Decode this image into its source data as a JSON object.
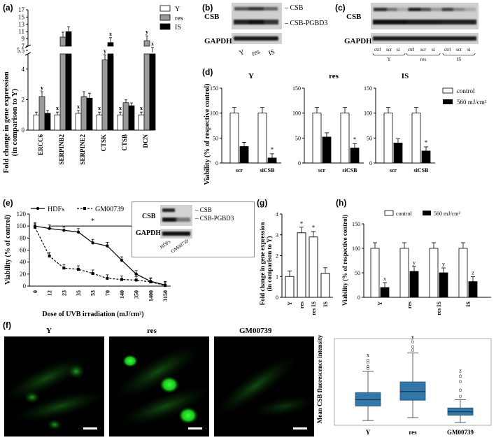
{
  "figure": {
    "panel_labels": [
      "(a)",
      "(b)",
      "(c)",
      "(d)",
      "(e)",
      "(f)",
      "(g)",
      "(h)"
    ]
  },
  "panel_a": {
    "ylabel_lines": [
      "Fold change in gene expression",
      "(in comparison to Y)"
    ],
    "legend": [
      "Y",
      "res",
      "IS"
    ],
    "genes": [
      "ERCC6",
      "SERPINB2",
      "SERPINE2",
      "CTSK",
      "CTSB",
      "DCN"
    ],
    "lower_ticks": [
      "0",
      "2",
      "4"
    ],
    "upper_ticks": [
      "5.5",
      "7",
      "9",
      "11",
      "13",
      "15",
      "17"
    ],
    "letters": [
      {
        "gene": "ERCC6",
        "series": "res",
        "text": "y"
      },
      {
        "gene": "SERPINB2",
        "series": "Y",
        "text": "x"
      },
      {
        "gene": "SERPINE2",
        "series": "Y",
        "text": "x"
      },
      {
        "gene": "CTSK",
        "series": "Y",
        "text": "x"
      },
      {
        "gene": "CTSK",
        "series": "res",
        "text": "y"
      },
      {
        "gene": "CTSK",
        "series": "IS",
        "text": "z"
      },
      {
        "gene": "CTSB",
        "series": "Y",
        "text": "x"
      },
      {
        "gene": "DCN",
        "series": "Y",
        "text": "x"
      },
      {
        "gene": "DCN",
        "series": "res",
        "text": "y"
      },
      {
        "gene": "DCN",
        "series": "IS",
        "text": "z"
      }
    ]
  },
  "panel_b": {
    "bands": [
      "CSB",
      "GAPDH"
    ],
    "band_labels": [
      "– CSB",
      "– CSB-PGBD3"
    ],
    "lanes": [
      "Y",
      "res",
      "IS"
    ]
  },
  "panel_c": {
    "bands": [
      "CSB",
      "GAPDH"
    ],
    "lanes": [
      "ctrl",
      "scr",
      "si",
      "ctrl",
      "scr",
      "si",
      "ctrl",
      "scr",
      "si"
    ],
    "groups": [
      "Y",
      "res",
      "IS"
    ]
  },
  "panel_d": {
    "ylabel": "Viability (% of respective control)",
    "subplots": [
      "Y",
      "res",
      "IS"
    ],
    "categories": [
      "scr",
      "siCSB"
    ],
    "ticks": [
      "0",
      "50",
      "100",
      "150"
    ],
    "legend": [
      "control",
      "560 mJ/cm²"
    ],
    "star": "*"
  },
  "panel_e": {
    "legend": [
      "HDFs",
      "GM00739"
    ],
    "ylabel": "Viability (% of control)",
    "xlabel": "Dose of UVB irradiation (mJ/cm²)",
    "ticks": [
      "0",
      "20",
      "40",
      "60",
      "80",
      "100",
      "120"
    ],
    "inset_bands": [
      "CSB",
      "GAPDH"
    ],
    "inset_band_labels": [
      "– CSB",
      "– CSB-PGBD3"
    ],
    "inset_lanes": [
      "HDFs",
      "GM00739"
    ],
    "star": "*"
  },
  "panel_g": {
    "ylabel_lines": [
      "Fold change in gene expression",
      "(in comparison to Y)"
    ],
    "ticks": [
      "0",
      "1",
      "2",
      "3",
      "4"
    ],
    "star": "*"
  },
  "panel_h": {
    "ylabel": "Viability (% of respective control)",
    "legend": [
      "control",
      "560 mJ/cm²"
    ],
    "ticks": [
      "0",
      "50",
      "100",
      "150"
    ],
    "letters": [
      "x",
      "y",
      "y",
      "z"
    ]
  },
  "panel_f": {
    "titles": [
      "Y",
      "res",
      "GM00739"
    ],
    "ylabel": "Mean CSB fluorescence intensity",
    "letters": [
      "x",
      "y",
      "z"
    ]
  },
  "chart_data": [
    {
      "type": "bar",
      "panel": "a",
      "categories": [
        "ERCC6",
        "SERPINB2",
        "SERPINE2",
        "CTSK",
        "CTSB",
        "DCN"
      ],
      "series": [
        {
          "name": "Y",
          "values": [
            1.0,
            1.0,
            1.1,
            1.0,
            1.0,
            1.0
          ]
        },
        {
          "name": "res",
          "values": [
            2.2,
            9.5,
            2.2,
            4.6,
            1.8,
            8.5
          ]
        },
        {
          "name": "IS",
          "values": [
            1.1,
            11.0,
            2.1,
            8.0,
            1.6,
            5.3
          ]
        }
      ],
      "ylim": [
        0,
        17
      ],
      "axis_break": [
        5,
        7
      ]
    },
    {
      "type": "bar",
      "panel": "d",
      "subplots": [
        {
          "title": "Y",
          "categories": [
            "scr",
            "siCSB"
          ],
          "series": [
            {
              "name": "control",
              "values": [
                100,
                100
              ]
            },
            {
              "name": "560 mJ/cm²",
              "values": [
                33,
                10
              ]
            }
          ]
        },
        {
          "title": "res",
          "categories": [
            "scr",
            "siCSB"
          ],
          "series": [
            {
              "name": "control",
              "values": [
                100,
                100
              ]
            },
            {
              "name": "560 mJ/cm²",
              "values": [
                52,
                30
              ]
            }
          ]
        },
        {
          "title": "IS",
          "categories": [
            "scr",
            "siCSB"
          ],
          "series": [
            {
              "name": "control",
              "values": [
                100,
                100
              ]
            },
            {
              "name": "560 mJ/cm²",
              "values": [
                40,
                24
              ]
            }
          ]
        }
      ],
      "ylim": [
        0,
        150
      ]
    },
    {
      "type": "line",
      "panel": "e",
      "x": [
        "0",
        "12",
        "23",
        "35",
        "53",
        "70",
        "140",
        "350",
        "1400",
        "3150"
      ],
      "series": [
        {
          "name": "HDFs",
          "values": [
            100,
            96,
            93,
            90,
            72,
            67,
            43,
            20,
            8,
            2
          ]
        },
        {
          "name": "GM00739",
          "values": [
            98,
            50,
            30,
            28,
            21,
            13,
            11,
            10,
            7,
            1
          ]
        }
      ],
      "ylim": [
        0,
        120
      ]
    },
    {
      "type": "bar",
      "panel": "g",
      "categories": [
        "Y",
        "res",
        "res IS",
        "IS"
      ],
      "values": [
        1.0,
        3.1,
        2.9,
        1.15
      ],
      "ylim": [
        0,
        4
      ]
    },
    {
      "type": "bar",
      "panel": "h",
      "categories": [
        "Y",
        "res",
        "res IS",
        "IS"
      ],
      "series": [
        {
          "name": "control",
          "values": [
            100,
            100,
            100,
            100
          ]
        },
        {
          "name": "560 mJ/cm²",
          "values": [
            20,
            53,
            50,
            32
          ]
        }
      ],
      "ylim": [
        0,
        150
      ]
    },
    {
      "type": "box",
      "panel": "f",
      "categories": [
        "Y",
        "res",
        "GM00739"
      ],
      "boxes": [
        {
          "whisker_low": 30,
          "q1": 60,
          "median": 73,
          "q3": 88,
          "whisker_high": 132
        },
        {
          "whisker_low": 36,
          "q1": 72,
          "median": 90,
          "q3": 110,
          "whisker_high": 170
        },
        {
          "whisker_low": 26,
          "q1": 41,
          "median": 48,
          "q3": 56,
          "whisker_high": 73
        }
      ],
      "ylim": [
        20,
        200
      ]
    }
  ]
}
